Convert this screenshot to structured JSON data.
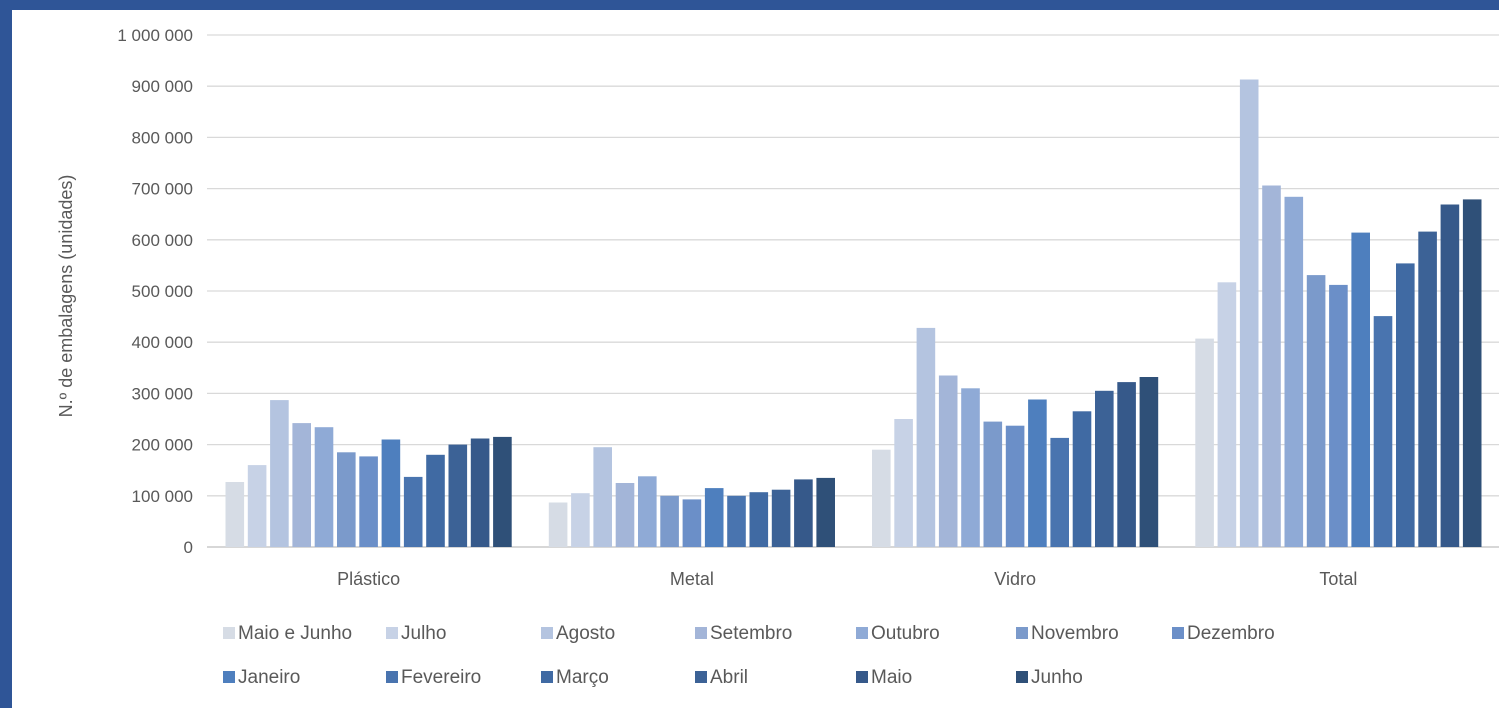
{
  "chart_data": {
    "type": "bar",
    "ylabel": "N.º de embalagens (unidades)",
    "ylim": [
      0,
      1000000
    ],
    "yticks": [
      "0",
      "100 000",
      "200 000",
      "300 000",
      "400 000",
      "500 000",
      "600 000",
      "700 000",
      "800 000",
      "900 000",
      "1 000 000"
    ],
    "categories": [
      "Plástico",
      "Metal",
      "Vidro",
      "Total"
    ],
    "grid": true,
    "legend_position": "bottom",
    "series": [
      {
        "name": "Maio e Junho",
        "color": "#d6dce5",
        "values": [
          127000,
          87000,
          190000,
          407000
        ]
      },
      {
        "name": "Julho",
        "color": "#c7d2e6",
        "values": [
          160000,
          105000,
          250000,
          517000
        ]
      },
      {
        "name": "Agosto",
        "color": "#b4c4e0",
        "values": [
          287000,
          195000,
          428000,
          913000
        ]
      },
      {
        "name": "Setembro",
        "color": "#a3b5d8",
        "values": [
          242000,
          125000,
          335000,
          706000
        ]
      },
      {
        "name": "Outubro",
        "color": "#8faad6",
        "values": [
          234000,
          138000,
          310000,
          684000
        ]
      },
      {
        "name": "Novembro",
        "color": "#7b9acb",
        "values": [
          185000,
          100000,
          245000,
          531000
        ]
      },
      {
        "name": "Dezembro",
        "color": "#6b8fc8",
        "values": [
          177000,
          93000,
          237000,
          512000
        ]
      },
      {
        "name": "Janeiro",
        "color": "#4e7fbe",
        "values": [
          210000,
          115000,
          288000,
          614000
        ]
      },
      {
        "name": "Fevereiro",
        "color": "#4974af",
        "values": [
          137000,
          100000,
          213000,
          451000
        ]
      },
      {
        "name": "Março",
        "color": "#406aa3",
        "values": [
          180000,
          107000,
          265000,
          554000
        ]
      },
      {
        "name": "Abril",
        "color": "#3c6296",
        "values": [
          200000,
          112000,
          305000,
          616000
        ]
      },
      {
        "name": "Maio",
        "color": "#36598a",
        "values": [
          212000,
          132000,
          322000,
          669000
        ]
      },
      {
        "name": "Junho",
        "color": "#2f5078",
        "values": [
          215000,
          135000,
          332000,
          679000
        ]
      }
    ]
  }
}
